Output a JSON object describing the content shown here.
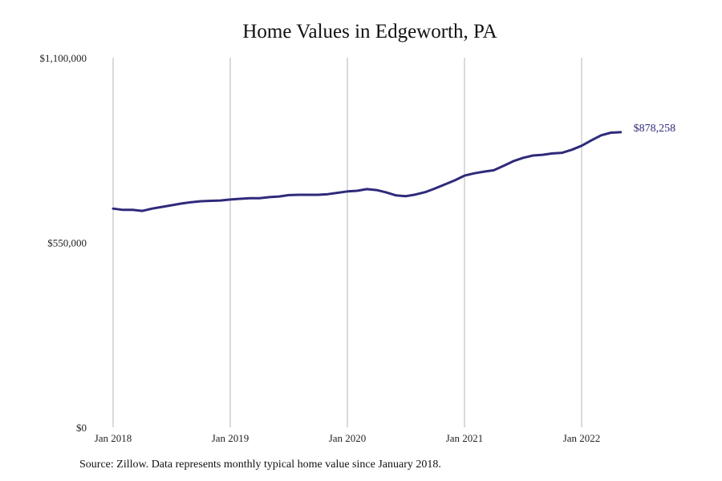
{
  "chart_data": {
    "type": "line",
    "title": "Home Values in Edgeworth, PA",
    "source_note": "Source: Zillow. Data represents monthly typical home value since January 2018.",
    "xlabel": "",
    "ylabel": "",
    "x_start": "2018-01",
    "x_frequency": "monthly",
    "x_tick_labels": [
      "Jan 2018",
      "Jan 2019",
      "Jan 2020",
      "Jan 2021",
      "Jan 2022"
    ],
    "y_tick_labels": [
      "$0",
      "$550,000",
      "$1,100,000"
    ],
    "y_ticks": [
      0,
      550000,
      1100000
    ],
    "ylim": [
      0,
      1100000
    ],
    "grid": "vertical",
    "line_color": "#2e2a7a",
    "end_label": "$878,258",
    "series": [
      {
        "values": [
          651000,
          647000,
          647000,
          644000,
          651000,
          656000,
          661000,
          666000,
          670000,
          673000,
          674000,
          675000,
          678000,
          680000,
          682000,
          682000,
          685000,
          687000,
          691000,
          692000,
          692000,
          692000,
          694000,
          698000,
          702000,
          704000,
          709000,
          706000,
          699000,
          690000,
          688000,
          693000,
          700000,
          711000,
          723000,
          735000,
          749000,
          756000,
          761000,
          765000,
          778000,
          792000,
          802000,
          809000,
          811000,
          815000,
          817000,
          826000,
          838000,
          854000,
          869000,
          877000,
          878258
        ]
      }
    ]
  }
}
